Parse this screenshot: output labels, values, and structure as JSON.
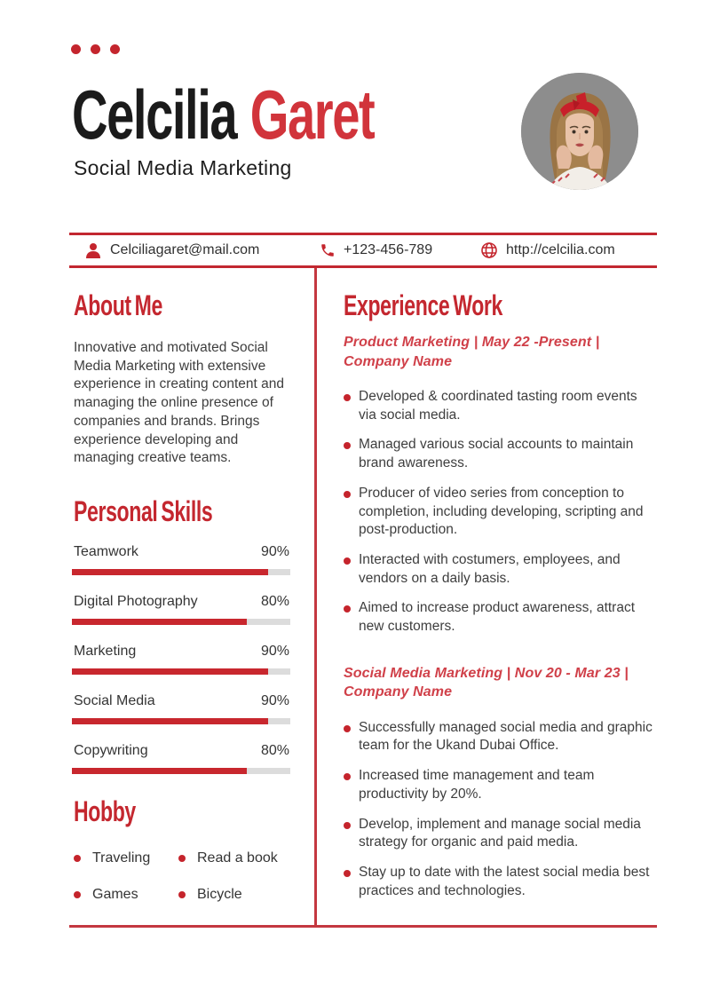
{
  "accent": "#c4272f",
  "header": {
    "first_name": "Celcilia",
    "last_name": "Garet",
    "subtitle": "Social Media Marketing"
  },
  "contact": {
    "email": "Celciliagaret@mail.com",
    "phone": "+123-456-789",
    "website": "http://celcilia.com"
  },
  "about": {
    "title": "About Me",
    "text": "Innovative and motivated Social Media Marketing with extensive experience in creating content and managing the online presence of companies and brands. Brings experience developing and managing creative teams."
  },
  "skills": {
    "title": "Personal Skills",
    "items": [
      {
        "label": "Teamwork",
        "percent": "90%",
        "value": 90
      },
      {
        "label": "Digital Photography",
        "percent": "80%",
        "value": 80
      },
      {
        "label": "Marketing",
        "percent": "90%",
        "value": 90
      },
      {
        "label": "Social Media",
        "percent": "90%",
        "value": 90
      },
      {
        "label": "Copywriting",
        "percent": "80%",
        "value": 80
      }
    ]
  },
  "hobby": {
    "title": "Hobby",
    "items": [
      "Traveling",
      "Read a book",
      "Games",
      "Bicycle"
    ]
  },
  "experience": {
    "title": "Experience Work",
    "jobs": [
      {
        "heading": "Product Marketing | May 22 -Present | Company Name",
        "bullets": [
          "Developed & coordinated tasting room events via social media.",
          "Managed various social accounts to maintain brand awareness.",
          "Producer of video series from conception to completion, including developing, scripting and post-production.",
          "Interacted with costumers, employees, and vendors on a daily basis.",
          "Aimed to increase product awareness, attract new customers."
        ]
      },
      {
        "heading": "Social Media Marketing | Nov 20 - Mar 23 | Company Name",
        "bullets": [
          "Successfully managed social media and graphic team for the Ukand Dubai Office.",
          "Increased time management and team productivity by 20%.",
          "Develop, implement and manage social media strategy for organic and paid media.",
          "Stay up to date with the latest social media best practices and technologies."
        ]
      }
    ]
  }
}
